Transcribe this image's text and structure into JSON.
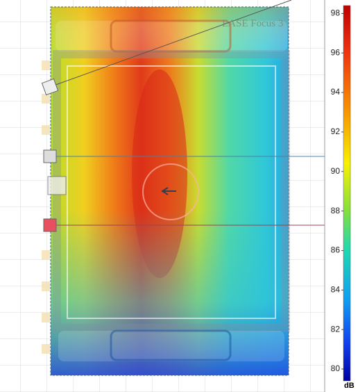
{
  "watermark": "EASE Focus 3",
  "colorbar": {
    "unit": "dB",
    "lim": [
      79.4,
      98.4
    ],
    "ticks": [
      80,
      82,
      84,
      86,
      88,
      90,
      92,
      94,
      96,
      98
    ]
  }
}
